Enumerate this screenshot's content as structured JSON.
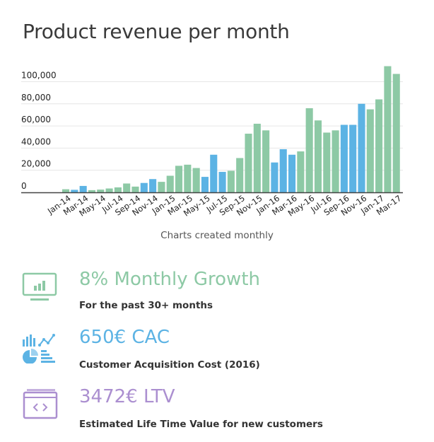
{
  "title": "Product revenue per month",
  "chart_data": {
    "type": "bar",
    "categories": [
      "Jan-14",
      "Feb-14",
      "Mar-14",
      "Apr-14",
      "May-14",
      "Jun-14",
      "Jul-14",
      "Aug-14",
      "Sep-14",
      "Oct-14",
      "Nov-14",
      "Dec-14",
      "Jan-15",
      "Feb-15",
      "Mar-15",
      "Apr-15",
      "May-15",
      "Jun-15",
      "Jul-15",
      "Aug-15",
      "Sep-15",
      "Oct-15",
      "Nov-15",
      "Dec-15",
      "Jan-16",
      "Feb-16",
      "Mar-16",
      "Apr-16",
      "May-16",
      "Jun-16",
      "Jul-16",
      "Aug-16",
      "Sep-16",
      "Oct-16",
      "Nov-16",
      "Dec-16",
      "Jan-17",
      "Feb-17",
      "Mar-17"
    ],
    "tick_labels": [
      "Jan-14",
      "Mar-14",
      "May-14",
      "Jul-14",
      "Sep-14",
      "Nov-14",
      "Jan-15",
      "Mar-15",
      "May-15",
      "Jul-15",
      "Sep-15",
      "Nov-15",
      "Jan-16",
      "Mar-16",
      "May-16",
      "Jul-16",
      "Sep-16",
      "Nov-16",
      "Jan-17",
      "Mar-17"
    ],
    "values": [
      2800,
      2300,
      5800,
      2000,
      2500,
      3500,
      4500,
      8000,
      5200,
      8500,
      12000,
      9500,
      15000,
      24000,
      25000,
      22000,
      14000,
      34000,
      18500,
      19500,
      31000,
      53000,
      62000,
      56000,
      27000,
      39000,
      34000,
      37000,
      76000,
      65000,
      54000,
      56000,
      61000,
      61000,
      80000,
      75000,
      84000,
      114000,
      107000
    ],
    "highlight": [
      false,
      true,
      true,
      false,
      false,
      false,
      false,
      false,
      false,
      true,
      true,
      false,
      false,
      false,
      false,
      false,
      true,
      true,
      true,
      false,
      false,
      false,
      false,
      false,
      true,
      true,
      true,
      false,
      false,
      false,
      false,
      false,
      true,
      true,
      true,
      false,
      false,
      false,
      false
    ],
    "yticks": [
      "0",
      "20,000",
      "40,000",
      "60,000",
      "80,000",
      "100,000"
    ],
    "ytick_values": [
      0,
      20000,
      40000,
      60000,
      80000,
      100000
    ],
    "ylim": [
      0,
      115000
    ],
    "xlabel": "Charts created monthly",
    "ylabel": "",
    "grid": true,
    "colors": {
      "default": "#8dc9a5",
      "highlight": "#5cb3e4",
      "grid": "#e6e6e6",
      "axis": "#444444"
    }
  },
  "stats": [
    {
      "headline": "8% Monthly Growth",
      "description": "For the past 30+ months",
      "color": "#8dc9a5",
      "icon": "monitor-bar-chart-icon"
    },
    {
      "headline": "650€ CAC",
      "description": "Customer Acquisition Cost  (2016)",
      "color": "#5cb3e4",
      "icon": "charts-collection-icon"
    },
    {
      "headline": "3472€ LTV",
      "description": "Estimated Life Time Value for new customers",
      "color": "#ab8fd0",
      "icon": "code-window-icon"
    }
  ]
}
